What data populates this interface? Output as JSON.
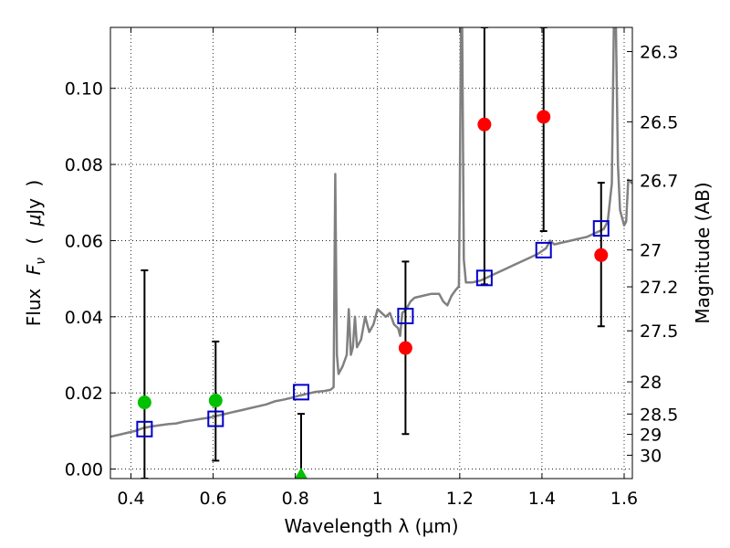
{
  "chart_data": {
    "type": "scatter",
    "xlabel": "Wavelength  λ (μm)",
    "ylabel": "Flux  F_ν  ( μJy )",
    "ylabel_parts": {
      "prefix": "Flux",
      "symbol": "F",
      "sub": "ν",
      "paren_open": "(",
      "mu": "μ",
      "unit": "Jy",
      "paren_close": ")"
    },
    "y2label": "Magnitude (AB)",
    "xlim": [
      0.35,
      1.62
    ],
    "ylim": [
      -0.0025,
      0.116
    ],
    "grid": true,
    "x_ticks": [
      {
        "value": 0.4,
        "label": "0.4"
      },
      {
        "value": 0.6,
        "label": "0.6"
      },
      {
        "value": 0.8,
        "label": "0.8"
      },
      {
        "value": 1.0,
        "label": "1"
      },
      {
        "value": 1.2,
        "label": "1.2"
      },
      {
        "value": 1.4,
        "label": "1.4"
      },
      {
        "value": 1.6,
        "label": "1.6"
      }
    ],
    "y_ticks": [
      {
        "value": 0.0,
        "label": "0.00"
      },
      {
        "value": 0.02,
        "label": "0.02"
      },
      {
        "value": 0.04,
        "label": "0.04"
      },
      {
        "value": 0.06,
        "label": "0.06"
      },
      {
        "value": 0.08,
        "label": "0.08"
      },
      {
        "value": 0.1,
        "label": "0.10"
      }
    ],
    "mag_ticks": [
      {
        "mag": 26.3,
        "label": "26.3"
      },
      {
        "mag": 26.5,
        "label": "26.5"
      },
      {
        "mag": 26.7,
        "label": "26.7"
      },
      {
        "mag": 27.0,
        "label": "27"
      },
      {
        "mag": 27.2,
        "label": "27.2"
      },
      {
        "mag": 27.5,
        "label": "27.5"
      },
      {
        "mag": 28.0,
        "label": "28"
      },
      {
        "mag": 28.5,
        "label": "28.5"
      },
      {
        "mag": 29.0,
        "label": "29"
      },
      {
        "mag": 30.0,
        "label": "30"
      }
    ],
    "spectrum": {
      "color": "#808080",
      "points": [
        [
          0.35,
          0.0085
        ],
        [
          0.37,
          0.009
        ],
        [
          0.39,
          0.0095
        ],
        [
          0.41,
          0.01
        ],
        [
          0.43,
          0.0108
        ],
        [
          0.45,
          0.0112
        ],
        [
          0.47,
          0.0115
        ],
        [
          0.49,
          0.0118
        ],
        [
          0.51,
          0.012
        ],
        [
          0.53,
          0.0125
        ],
        [
          0.55,
          0.0128
        ],
        [
          0.57,
          0.0132
        ],
        [
          0.59,
          0.0135
        ],
        [
          0.61,
          0.014
        ],
        [
          0.63,
          0.0145
        ],
        [
          0.65,
          0.015
        ],
        [
          0.67,
          0.0155
        ],
        [
          0.69,
          0.016
        ],
        [
          0.71,
          0.0165
        ],
        [
          0.73,
          0.017
        ],
        [
          0.75,
          0.0178
        ],
        [
          0.77,
          0.0182
        ],
        [
          0.79,
          0.0187
        ],
        [
          0.81,
          0.0193
        ],
        [
          0.83,
          0.0198
        ],
        [
          0.85,
          0.0203
        ],
        [
          0.87,
          0.0205
        ],
        [
          0.885,
          0.0208
        ],
        [
          0.893,
          0.0215
        ],
        [
          0.897,
          0.0775
        ],
        [
          0.901,
          0.03
        ],
        [
          0.905,
          0.025
        ],
        [
          0.915,
          0.027
        ],
        [
          0.925,
          0.03
        ],
        [
          0.93,
          0.042
        ],
        [
          0.935,
          0.03
        ],
        [
          0.94,
          0.032
        ],
        [
          0.945,
          0.04
        ],
        [
          0.95,
          0.032
        ],
        [
          0.96,
          0.034
        ],
        [
          0.97,
          0.04
        ],
        [
          0.98,
          0.036
        ],
        [
          0.99,
          0.038
        ],
        [
          1.0,
          0.042
        ],
        [
          1.01,
          0.041
        ],
        [
          1.02,
          0.04
        ],
        [
          1.03,
          0.041
        ],
        [
          1.04,
          0.038
        ],
        [
          1.05,
          0.037
        ],
        [
          1.055,
          0.035
        ],
        [
          1.06,
          0.041
        ],
        [
          1.07,
          0.042
        ],
        [
          1.08,
          0.044
        ],
        [
          1.09,
          0.045
        ],
        [
          1.11,
          0.0455
        ],
        [
          1.13,
          0.046
        ],
        [
          1.15,
          0.046
        ],
        [
          1.16,
          0.044
        ],
        [
          1.17,
          0.043
        ],
        [
          1.18,
          0.0455
        ],
        [
          1.19,
          0.047
        ],
        [
          1.198,
          0.048
        ],
        [
          1.2,
          0.07
        ],
        [
          1.203,
          0.116
        ],
        [
          1.206,
          0.116
        ],
        [
          1.21,
          0.055
        ],
        [
          1.215,
          0.049
        ],
        [
          1.23,
          0.049
        ],
        [
          1.25,
          0.0495
        ],
        [
          1.27,
          0.0505
        ],
        [
          1.29,
          0.0515
        ],
        [
          1.31,
          0.0525
        ],
        [
          1.33,
          0.0535
        ],
        [
          1.35,
          0.0545
        ],
        [
          1.37,
          0.0555
        ],
        [
          1.39,
          0.0565
        ],
        [
          1.41,
          0.058
        ],
        [
          1.42,
          0.06
        ],
        [
          1.43,
          0.059
        ],
        [
          1.45,
          0.0595
        ],
        [
          1.47,
          0.06
        ],
        [
          1.49,
          0.0605
        ],
        [
          1.51,
          0.061
        ],
        [
          1.53,
          0.062
        ],
        [
          1.55,
          0.063
        ],
        [
          1.56,
          0.065
        ],
        [
          1.57,
          0.075
        ],
        [
          1.575,
          0.116
        ],
        [
          1.58,
          0.116
        ],
        [
          1.585,
          0.08
        ],
        [
          1.59,
          0.068
        ],
        [
          1.6,
          0.064
        ],
        [
          1.605,
          0.065
        ],
        [
          1.61,
          0.076
        ],
        [
          1.62,
          0.075
        ]
      ]
    },
    "model_points": {
      "marker": "open-square",
      "color": "#0000cc",
      "points": [
        {
          "x": 0.433,
          "y": 0.0105
        },
        {
          "x": 0.606,
          "y": 0.0132
        },
        {
          "x": 0.814,
          "y": 0.0202
        },
        {
          "x": 1.068,
          "y": 0.0402
        },
        {
          "x": 1.26,
          "y": 0.0502
        },
        {
          "x": 1.404,
          "y": 0.0575
        },
        {
          "x": 1.544,
          "y": 0.0632
        }
      ]
    },
    "observed_points": [
      {
        "x": 0.433,
        "y": 0.0175,
        "color": "#00c000",
        "marker": "circle",
        "err_low": -0.0025,
        "err_high": 0.0522
      },
      {
        "x": 0.606,
        "y": 0.018,
        "color": "#00c000",
        "marker": "circle",
        "err_low": 0.0022,
        "err_high": 0.0335
      },
      {
        "x": 0.814,
        "y": -0.0015,
        "color": "#00c000",
        "marker": "triangle",
        "err_low": -0.0025,
        "err_high": 0.0145
      },
      {
        "x": 1.068,
        "y": 0.0318,
        "color": "#ff0000",
        "marker": "circle",
        "err_low": 0.0092,
        "err_high": 0.0545
      },
      {
        "x": 1.26,
        "y": 0.0905,
        "color": "#ff0000",
        "marker": "circle",
        "err_low": 0.0485,
        "err_high": 0.116
      },
      {
        "x": 1.404,
        "y": 0.0925,
        "color": "#ff0000",
        "marker": "circle",
        "err_low": 0.0625,
        "err_high": 0.116
      },
      {
        "x": 1.544,
        "y": 0.0562,
        "color": "#ff0000",
        "marker": "circle",
        "err_low": 0.0375,
        "err_high": 0.0752
      }
    ]
  }
}
